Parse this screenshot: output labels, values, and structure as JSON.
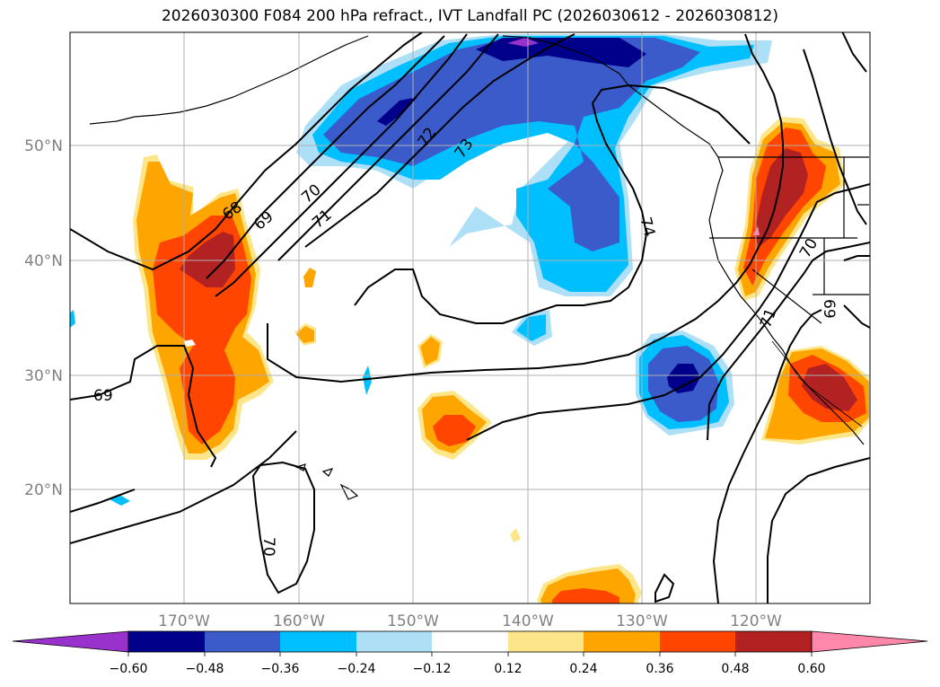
{
  "title": "2026030300 F084 200 hPa refract., IVT Landfall PC (2026030612 - 2026030812)",
  "map": {
    "lat_labels": [
      "50°N",
      "40°N",
      "30°N",
      "20°N"
    ],
    "lon_labels": [
      "170°W",
      "160°W",
      "150°W",
      "140°W",
      "130°W",
      "120°W"
    ],
    "contour_labels": [
      "68",
      "69",
      "70",
      "71",
      "72",
      "73",
      "74",
      "70",
      "71",
      "69",
      "69",
      "70"
    ]
  },
  "colorbar": {
    "ticks": [
      "−0.60",
      "−0.48",
      "−0.36",
      "−0.24",
      "−0.12",
      "0.12",
      "0.24",
      "0.36",
      "0.48",
      "0.60"
    ],
    "colors": [
      "#9932CC",
      "#00008B",
      "#3A5BC9",
      "#00BFFF",
      "#ADE0F7",
      "#FFFFFF",
      "#FDE68A",
      "#FFA500",
      "#FF4500",
      "#B22222",
      "#FF88AA"
    ]
  },
  "legend_colors": {
    "strong_negative": "#00008B",
    "negative": "#3A5BC9",
    "weak_negative": "#00BFFF",
    "positive": "#FFA500",
    "strong_positive": "#FF4500",
    "very_strong_positive": "#B22222"
  }
}
